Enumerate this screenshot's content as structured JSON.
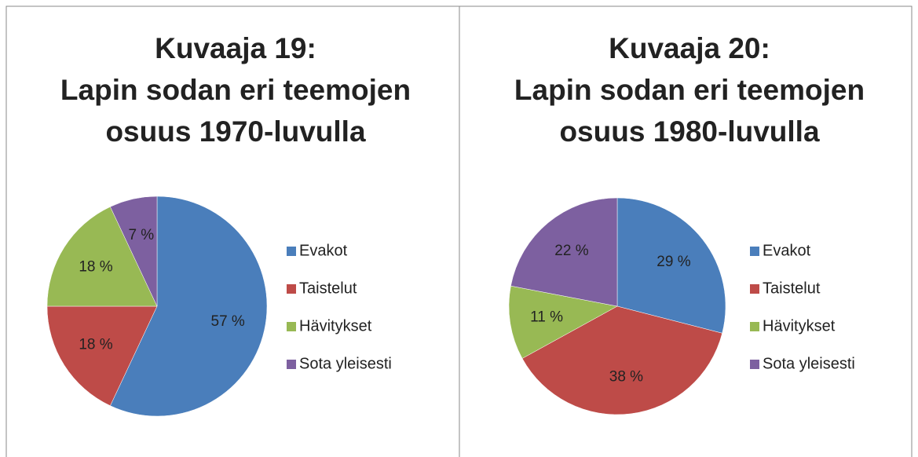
{
  "chart_data": [
    {
      "type": "pie",
      "title": [
        "Kuvaaja 19:",
        "Lapin sodan eri teemojen",
        "osuus 1970-luvulla"
      ],
      "categories": [
        "Evakot",
        "Taistelut",
        "Hävitykset",
        "Sota yleisesti"
      ],
      "values": [
        57,
        18,
        18,
        7
      ],
      "value_labels": [
        "57 %",
        "18 %",
        "18 %",
        "7 %"
      ],
      "colors": [
        "#4a7ebb",
        "#be4b48",
        "#98b954",
        "#7d60a0"
      ],
      "legend": "right"
    },
    {
      "type": "pie",
      "title": [
        "Kuvaaja 20:",
        "Lapin sodan eri teemojen",
        "osuus 1980-luvulla"
      ],
      "categories": [
        "Evakot",
        "Taistelut",
        "Hävitykset",
        "Sota yleisesti"
      ],
      "values": [
        29,
        38,
        11,
        22
      ],
      "value_labels": [
        "29 %",
        "38 %",
        "11 %",
        "22 %"
      ],
      "colors": [
        "#4a7ebb",
        "#be4b48",
        "#98b954",
        "#7d60a0"
      ],
      "legend": "right"
    }
  ]
}
